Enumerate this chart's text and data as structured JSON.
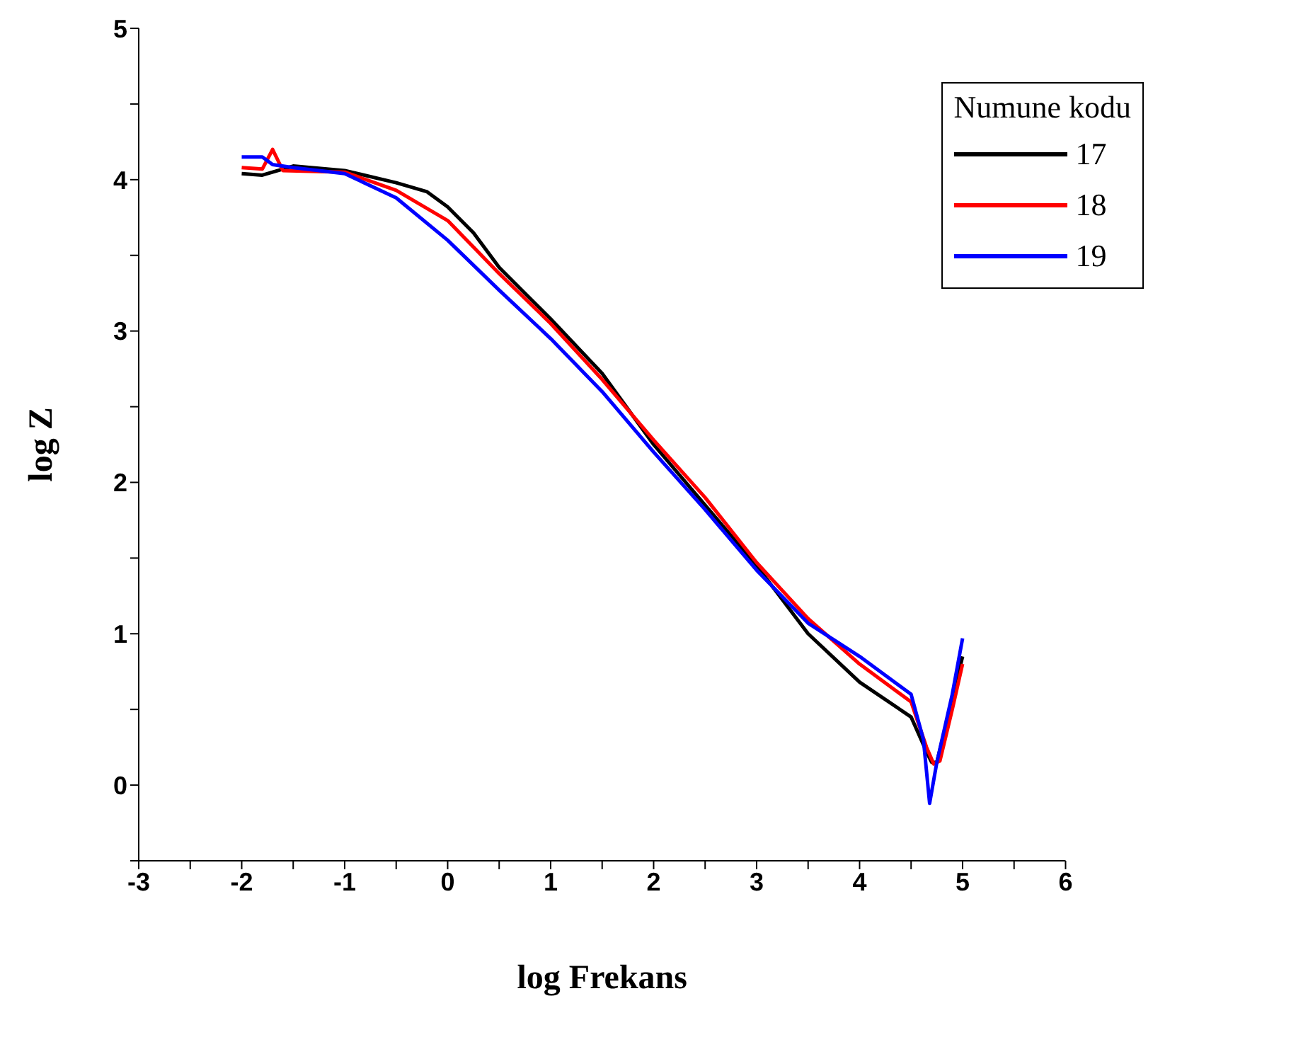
{
  "chart_data": {
    "type": "line",
    "xlabel": "log Frekans",
    "ylabel": "log Z",
    "legend_title": "Numune kodu",
    "legend": "top right",
    "grid": false,
    "marker": "none",
    "line_style": "solid",
    "xlim": [
      -3,
      6
    ],
    "xticks": [
      -3,
      {
        "value": -2.5,
        "label": null
      },
      -2,
      {
        "value": -1.5,
        "label": null
      },
      -1,
      {
        "value": -0.5,
        "label": null
      },
      0,
      {
        "value": 0.5,
        "label": null
      },
      1,
      {
        "value": 1.5,
        "label": null
      },
      2,
      {
        "value": 2.5,
        "label": null
      },
      3,
      {
        "value": 3.5,
        "label": null
      },
      4,
      {
        "value": 4.5,
        "label": null
      },
      5,
      {
        "value": 5.5,
        "label": null
      },
      6
    ],
    "ylim": [
      -0.5,
      5
    ],
    "yticks": [
      {
        "value": -0.5,
        "label": null
      },
      0,
      {
        "value": 0.5,
        "label": null
      },
      1,
      {
        "value": 1.5,
        "label": null
      },
      2,
      {
        "value": 2.5,
        "label": null
      },
      3,
      {
        "value": 3.5,
        "label": null
      },
      4,
      {
        "value": 4.5,
        "label": null
      },
      5
    ],
    "series": [
      {
        "name": "17",
        "color": "#000000",
        "x": [
          -2,
          -1.8,
          -1.6,
          -1.5,
          -1,
          -0.5,
          -0.2,
          0,
          0.25,
          0.5,
          0.75,
          1,
          1.5,
          2,
          2.5,
          3,
          3.5,
          4,
          4.5,
          4.65,
          4.7,
          4.75,
          5
        ],
        "values": [
          4.04,
          4.03,
          4.07,
          4.09,
          4.06,
          3.98,
          3.92,
          3.82,
          3.65,
          3.42,
          3.25,
          3.08,
          2.72,
          2.25,
          1.85,
          1.45,
          1.0,
          0.68,
          0.45,
          0.22,
          0.15,
          0.15,
          0.85
        ]
      },
      {
        "name": "18",
        "color": "#ff0000",
        "x": [
          -2,
          -1.8,
          -1.7,
          -1.6,
          -1,
          -0.5,
          0,
          0.5,
          1,
          1.5,
          2,
          2.5,
          3,
          3.5,
          4,
          4.5,
          4.65,
          4.72,
          4.78,
          4.9,
          5
        ],
        "values": [
          4.08,
          4.07,
          4.2,
          4.06,
          4.05,
          3.93,
          3.73,
          3.38,
          3.05,
          2.68,
          2.28,
          1.9,
          1.47,
          1.1,
          0.8,
          0.55,
          0.25,
          0.14,
          0.16,
          0.5,
          0.8
        ]
      },
      {
        "name": "19",
        "color": "#0000ff",
        "x": [
          -2,
          -1.8,
          -1.7,
          -1.5,
          -1,
          -0.5,
          0,
          0.5,
          1,
          1.5,
          2,
          2.5,
          3,
          3.5,
          4,
          4.5,
          4.62,
          4.68,
          4.75,
          4.9,
          5
        ],
        "values": [
          4.15,
          4.15,
          4.1,
          4.08,
          4.04,
          3.88,
          3.6,
          3.27,
          2.95,
          2.6,
          2.2,
          1.82,
          1.42,
          1.07,
          0.85,
          0.6,
          0.3,
          -0.12,
          0.15,
          0.6,
          0.97
        ]
      }
    ]
  }
}
